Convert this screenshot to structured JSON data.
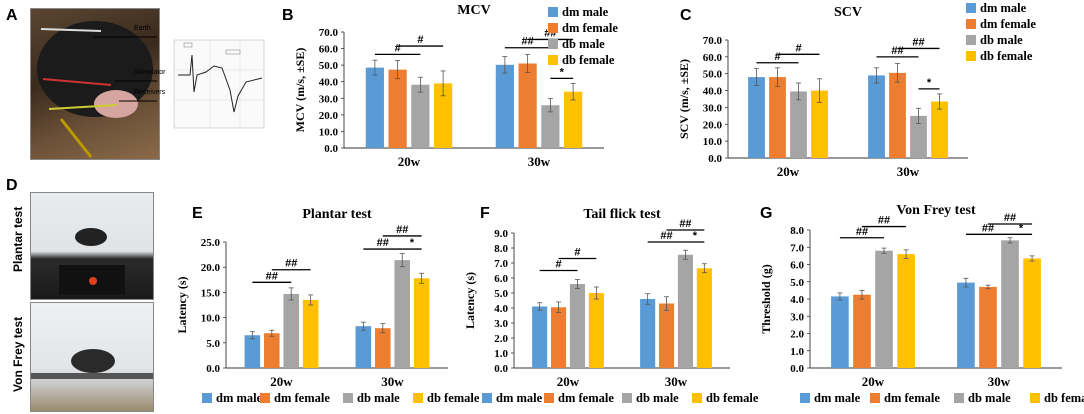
{
  "panels": {
    "A": "A",
    "B": "B",
    "C": "C",
    "D": "D",
    "E": "E",
    "F": "F",
    "G": "G"
  },
  "photoA": {
    "labels": [
      "Earth",
      "Stimulator",
      "Receivers"
    ]
  },
  "photoD": {
    "top_label": "Plantar test",
    "bottom_label": "Von Frey test"
  },
  "colors": {
    "dm male": "#5B9BD5",
    "dm female": "#ED7D31",
    "db male": "#A5A5A5",
    "db female": "#FFC000"
  },
  "chart_data": [
    {
      "id": "B",
      "type": "bar",
      "title": "MCV",
      "ylabel": "MCV (m/s, ±SE)",
      "categories": [
        "20w",
        "30w"
      ],
      "ylim": [
        0,
        70
      ],
      "ytick_step": 10,
      "tick_decimals": 1,
      "series": [
        {
          "name": "dm male",
          "values": [
            48.5,
            50.2
          ],
          "errors": [
            4.5,
            5.0
          ]
        },
        {
          "name": "dm female",
          "values": [
            47.3,
            51.0
          ],
          "errors": [
            5.5,
            5.5
          ]
        },
        {
          "name": "db male",
          "values": [
            38.2,
            25.8
          ],
          "errors": [
            4.5,
            4.0
          ]
        },
        {
          "name": "db female",
          "values": [
            39.0,
            34.0
          ],
          "errors": [
            7.5,
            5.0
          ]
        }
      ],
      "legend": [
        "dm male",
        "dm female",
        "db male",
        "db female"
      ],
      "legend_position": "right",
      "annotations": [
        {
          "group": 0,
          "from": 0,
          "to": 2,
          "y": 56.5,
          "text": "#"
        },
        {
          "group": 0,
          "from": 1,
          "to": 3,
          "y": 61.5,
          "text": "#"
        },
        {
          "group": 1,
          "from": 0,
          "to": 2,
          "y": 60.5,
          "text": "##"
        },
        {
          "group": 1,
          "from": 1,
          "to": 3,
          "y": 65.5,
          "text": "##"
        },
        {
          "group": 1,
          "from": 2,
          "to": 3,
          "y": 42.0,
          "text": "*"
        }
      ]
    },
    {
      "id": "C",
      "type": "bar",
      "title": "SCV",
      "ylabel": "SCV (m/s, ±SE)",
      "categories": [
        "20w",
        "30w"
      ],
      "ylim": [
        0,
        70
      ],
      "ytick_step": 10,
      "tick_decimals": 1,
      "series": [
        {
          "name": "dm male",
          "values": [
            48.0,
            49.0
          ],
          "errors": [
            5.0,
            4.5
          ]
        },
        {
          "name": "dm female",
          "values": [
            48.0,
            50.5
          ],
          "errors": [
            5.5,
            5.5
          ]
        },
        {
          "name": "db male",
          "values": [
            39.5,
            25.0
          ],
          "errors": [
            5.0,
            4.5
          ]
        },
        {
          "name": "db female",
          "values": [
            40.0,
            33.5
          ],
          "errors": [
            7.0,
            4.5
          ]
        }
      ],
      "legend": [
        "dm male",
        "dm female",
        "db male",
        "db female"
      ],
      "legend_position": "right",
      "annotations": [
        {
          "group": 0,
          "from": 0,
          "to": 2,
          "y": 56.5,
          "text": "#"
        },
        {
          "group": 0,
          "from": 1,
          "to": 3,
          "y": 61.5,
          "text": "#"
        },
        {
          "group": 1,
          "from": 0,
          "to": 2,
          "y": 60.0,
          "text": "##"
        },
        {
          "group": 1,
          "from": 1,
          "to": 3,
          "y": 65.0,
          "text": "##"
        },
        {
          "group": 1,
          "from": 2,
          "to": 3,
          "y": 41.0,
          "text": "*"
        }
      ]
    },
    {
      "id": "E",
      "type": "bar",
      "title": "Plantar test",
      "ylabel": "Latency (s)",
      "categories": [
        "20w",
        "30w"
      ],
      "ylim": [
        0,
        25
      ],
      "ytick_step": 5,
      "tick_decimals": 1,
      "series": [
        {
          "name": "dm male",
          "values": [
            6.5,
            8.3
          ],
          "errors": [
            0.7,
            0.8
          ]
        },
        {
          "name": "dm female",
          "values": [
            6.9,
            7.9
          ],
          "errors": [
            0.6,
            0.9
          ]
        },
        {
          "name": "db male",
          "values": [
            14.7,
            21.4
          ],
          "errors": [
            1.2,
            1.3
          ]
        },
        {
          "name": "db female",
          "values": [
            13.5,
            17.8
          ],
          "errors": [
            1.0,
            1.0
          ]
        }
      ],
      "legend": [
        "dm male",
        "dm female",
        "db male",
        "db female"
      ],
      "legend_position": "bottom",
      "annotations": [
        {
          "group": 0,
          "from": 0,
          "to": 2,
          "y": 17.0,
          "text": "##"
        },
        {
          "group": 0,
          "from": 1,
          "to": 3,
          "y": 19.5,
          "text": "##"
        },
        {
          "group": 1,
          "from": 0,
          "to": 2,
          "y": 23.6,
          "text": "##"
        },
        {
          "group": 1,
          "from": 1,
          "to": 3,
          "y": 26.2,
          "text": "##"
        },
        {
          "group": 1,
          "from": 2,
          "to": 3,
          "y": 23.6,
          "text": "*"
        }
      ]
    },
    {
      "id": "F",
      "type": "bar",
      "title": "Tail flick test",
      "ylabel": "Latency (s)",
      "categories": [
        "20w",
        "30w"
      ],
      "ylim": [
        0,
        9
      ],
      "ytick_step": 1,
      "tick_decimals": 1,
      "series": [
        {
          "name": "dm male",
          "values": [
            4.1,
            4.6
          ],
          "errors": [
            0.25,
            0.35
          ]
        },
        {
          "name": "dm female",
          "values": [
            4.05,
            4.3
          ],
          "errors": [
            0.35,
            0.45
          ]
        },
        {
          "name": "db male",
          "values": [
            5.6,
            7.55
          ],
          "errors": [
            0.3,
            0.3
          ]
        },
        {
          "name": "db female",
          "values": [
            5.0,
            6.65
          ],
          "errors": [
            0.4,
            0.3
          ]
        }
      ],
      "legend": [
        "dm male",
        "dm female",
        "db male",
        "db female"
      ],
      "legend_position": "bottom",
      "annotations": [
        {
          "group": 0,
          "from": 0,
          "to": 2,
          "y": 6.5,
          "text": "#"
        },
        {
          "group": 0,
          "from": 1,
          "to": 3,
          "y": 7.3,
          "text": "#"
        },
        {
          "group": 1,
          "from": 0,
          "to": 2,
          "y": 8.4,
          "text": "##"
        },
        {
          "group": 1,
          "from": 1,
          "to": 3,
          "y": 9.2,
          "text": "##"
        },
        {
          "group": 1,
          "from": 2,
          "to": 3,
          "y": 8.4,
          "text": "*"
        }
      ]
    },
    {
      "id": "G",
      "type": "bar",
      "title": "Von Frey test",
      "ylabel": "Threshold (g)",
      "categories": [
        "20w",
        "30w"
      ],
      "ylim": [
        0,
        8
      ],
      "ytick_step": 1,
      "tick_decimals": 1,
      "series": [
        {
          "name": "dm male",
          "values": [
            4.15,
            4.95
          ],
          "errors": [
            0.2,
            0.25
          ]
        },
        {
          "name": "dm female",
          "values": [
            4.25,
            4.7
          ],
          "errors": [
            0.25,
            0.1
          ]
        },
        {
          "name": "db male",
          "values": [
            6.8,
            7.4
          ],
          "errors": [
            0.15,
            0.15
          ]
        },
        {
          "name": "db female",
          "values": [
            6.6,
            6.35
          ],
          "errors": [
            0.25,
            0.15
          ]
        }
      ],
      "legend": [
        "dm male",
        "dm female",
        "db male",
        "db female"
      ],
      "legend_position": "bottom",
      "annotations": [
        {
          "group": 0,
          "from": 0,
          "to": 2,
          "y": 7.55,
          "text": "##"
        },
        {
          "group": 0,
          "from": 1,
          "to": 3,
          "y": 8.2,
          "text": "##"
        },
        {
          "group": 1,
          "from": 0,
          "to": 2,
          "y": 7.75,
          "text": "##"
        },
        {
          "group": 1,
          "from": 1,
          "to": 3,
          "y": 8.35,
          "text": "##"
        },
        {
          "group": 1,
          "from": 2,
          "to": 3,
          "y": 7.75,
          "text": "*"
        }
      ]
    }
  ]
}
